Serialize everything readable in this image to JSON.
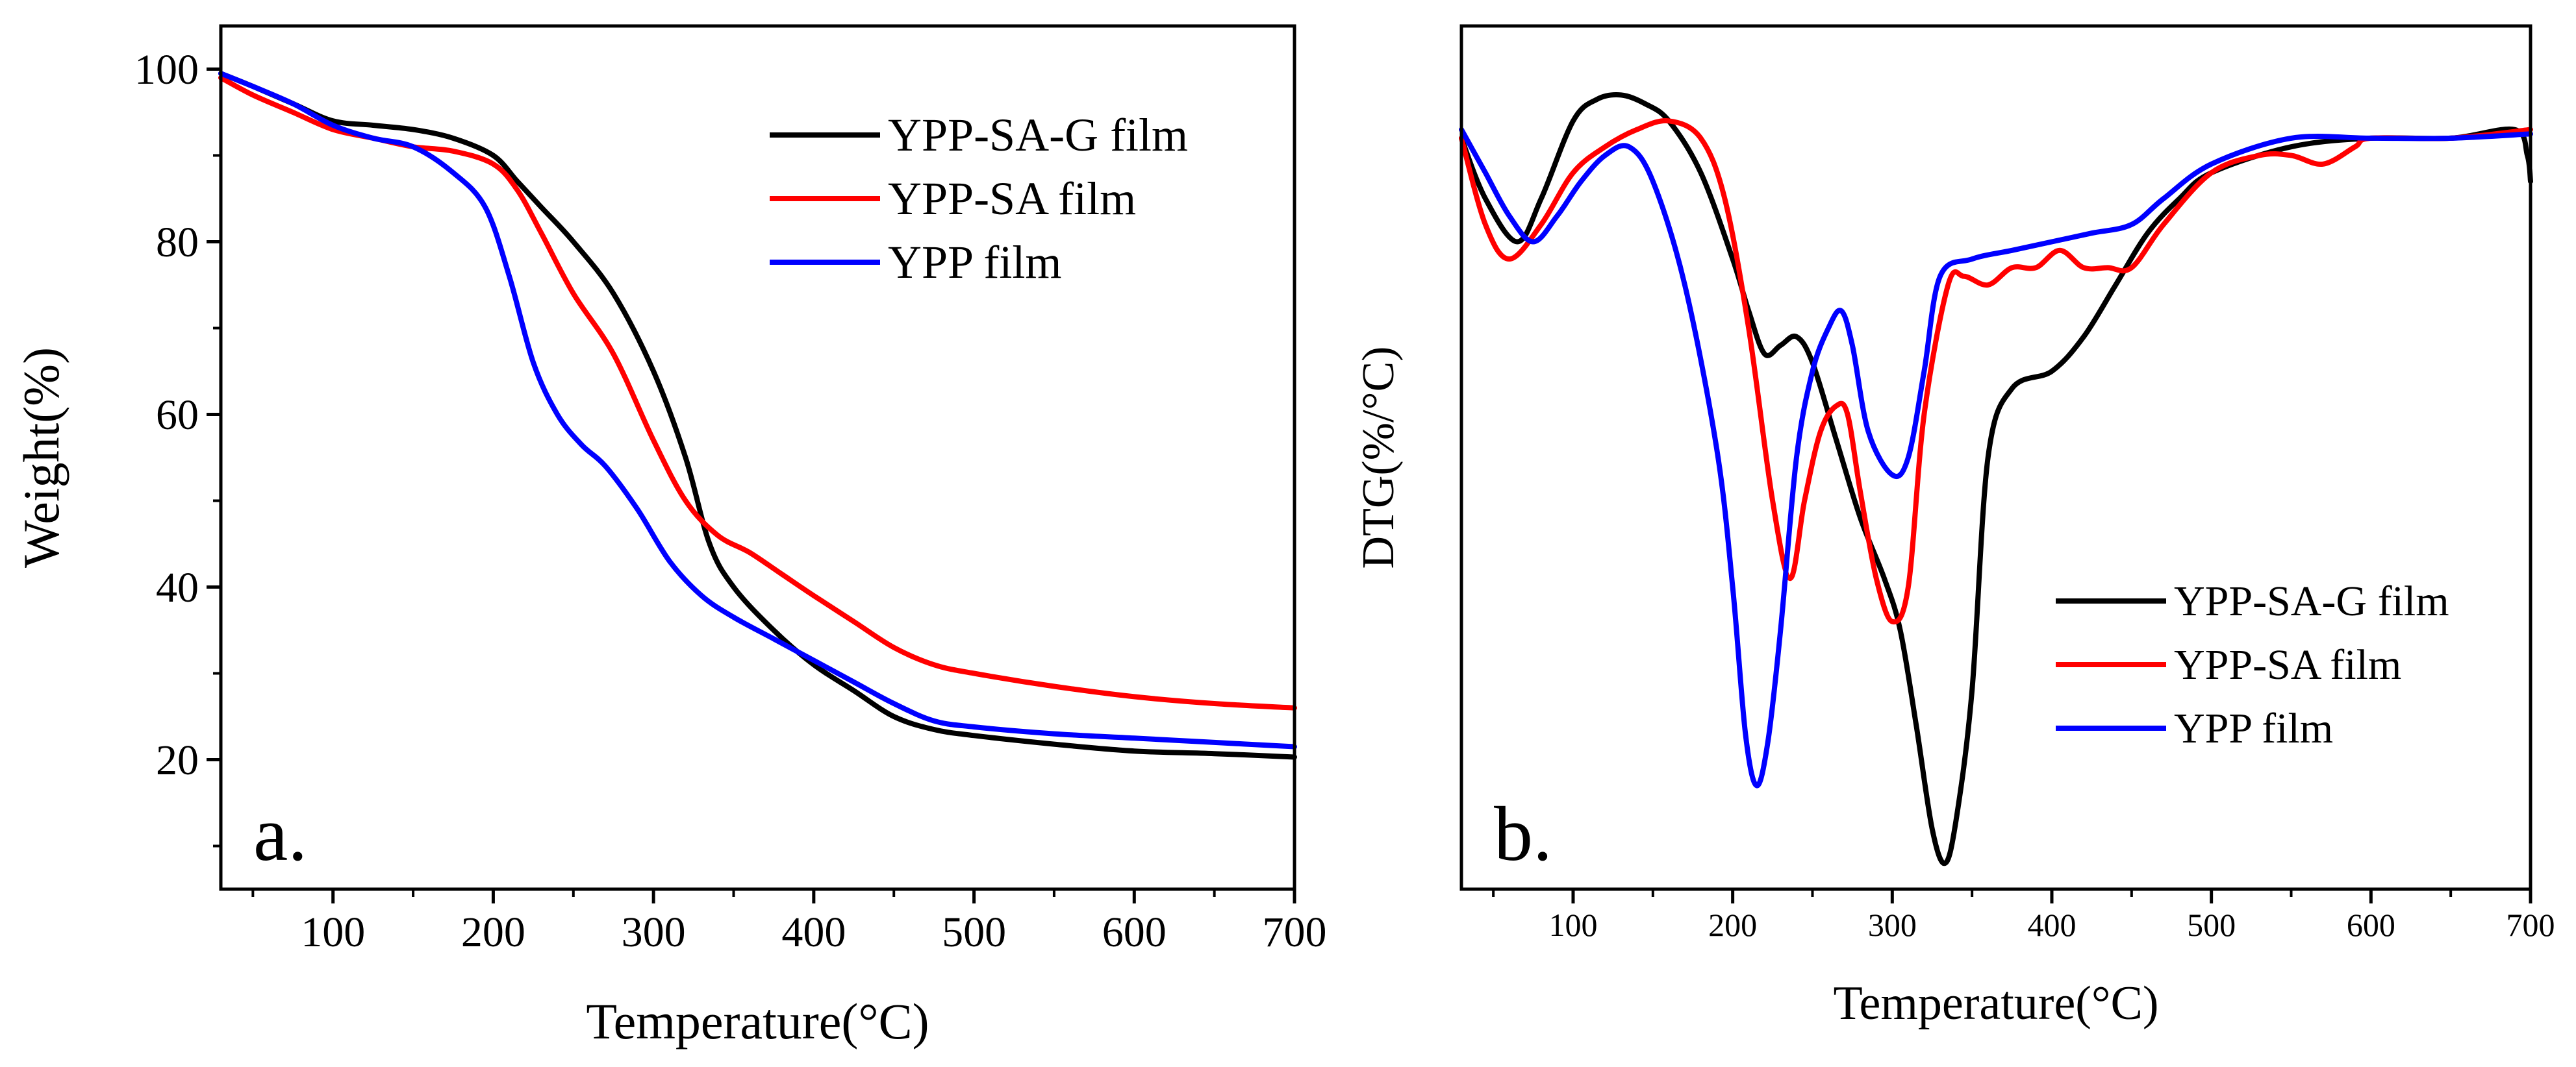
{
  "chart_data": [
    {
      "type": "line",
      "panel_label": "a.",
      "xlabel": "Temperature(°C)",
      "ylabel": "Weight(%)",
      "xlim": [
        30,
        700
      ],
      "ylim": [
        5,
        105
      ],
      "x_ticks": [
        100,
        200,
        300,
        400,
        500,
        600,
        700
      ],
      "x_tick_labels": [
        "100",
        "200",
        "300",
        "400",
        "500",
        "600",
        "700"
      ],
      "y_ticks": [
        20,
        40,
        60,
        80,
        100
      ],
      "y_tick_labels": [
        "20",
        "40",
        "60",
        "80",
        "100"
      ],
      "grid": false,
      "legend_position": "top-right",
      "series": [
        {
          "name": "YPP-SA-G film",
          "color": "#000000",
          "x": [
            30,
            50,
            75,
            100,
            125,
            150,
            175,
            200,
            215,
            230,
            250,
            275,
            300,
            320,
            335,
            350,
            375,
            400,
            425,
            450,
            475,
            500,
            550,
            600,
            650,
            700
          ],
          "y": [
            99.5,
            98,
            96,
            94,
            93.5,
            93,
            92,
            90,
            87,
            84,
            80,
            74,
            65,
            55,
            45,
            40,
            35,
            31,
            28,
            25,
            23.5,
            22.8,
            21.8,
            21,
            20.7,
            20.3
          ]
        },
        {
          "name": "YPP-SA film",
          "color": "#ff0000",
          "x": [
            30,
            50,
            75,
            100,
            125,
            150,
            175,
            200,
            215,
            230,
            250,
            275,
            300,
            320,
            340,
            360,
            380,
            400,
            425,
            450,
            475,
            500,
            550,
            600,
            650,
            700
          ],
          "y": [
            99,
            97,
            95,
            93,
            92,
            91,
            90.5,
            89,
            86,
            81,
            74,
            67,
            57,
            50,
            46,
            44,
            41.5,
            39,
            36,
            33,
            31,
            30,
            28.5,
            27.3,
            26.5,
            26
          ]
        },
        {
          "name": "YPP film",
          "color": "#0000ff",
          "x": [
            30,
            50,
            75,
            100,
            125,
            150,
            175,
            195,
            210,
            225,
            240,
            255,
            270,
            290,
            310,
            330,
            350,
            375,
            400,
            425,
            450,
            475,
            500,
            550,
            600,
            650,
            700
          ],
          "y": [
            99.5,
            98,
            96,
            93.5,
            92,
            91,
            88,
            84,
            76,
            66,
            60,
            56.5,
            54,
            49,
            43,
            39,
            36.5,
            34,
            31.5,
            29,
            26.5,
            24.5,
            23.8,
            23,
            22.5,
            22,
            21.5
          ]
        }
      ]
    },
    {
      "type": "line",
      "panel_label": "b.",
      "xlabel": "Temperature(°C)",
      "ylabel": "DTG(%/°C)",
      "xlim": [
        30,
        700
      ],
      "ylim": [
        0,
        100
      ],
      "x_ticks": [
        100,
        200,
        300,
        400,
        500,
        600,
        700
      ],
      "x_tick_labels": [
        "100",
        "200",
        "300",
        "400",
        "500",
        "600",
        "700"
      ],
      "y_ticks": [],
      "y_tick_labels": [],
      "y_units": "relative (unlabeled axis)",
      "grid": false,
      "legend_position": "bottom-right",
      "series": [
        {
          "name": "YPP-SA-G film",
          "color": "#000000",
          "x": [
            30,
            45,
            65,
            80,
            100,
            115,
            130,
            145,
            160,
            180,
            200,
            210,
            220,
            230,
            240,
            250,
            265,
            280,
            295,
            305,
            315,
            325,
            333,
            340,
            350,
            360,
            375,
            400,
            420,
            440,
            460,
            480,
            500,
            550,
            600,
            650,
            690,
            698,
            700
          ],
          "y": [
            87,
            80,
            75,
            80,
            89,
            91.5,
            92,
            91,
            89,
            83,
            73,
            67,
            62,
            63,
            64,
            61,
            52,
            43,
            36,
            30,
            19,
            7,
            3,
            8,
            23,
            50,
            58,
            60,
            64,
            70,
            76,
            80,
            83,
            86,
            87,
            87,
            88,
            85,
            82
          ]
        },
        {
          "name": "YPP-SA film",
          "color": "#ff0000",
          "x": [
            30,
            45,
            60,
            80,
            100,
            120,
            140,
            160,
            180,
            195,
            210,
            225,
            236,
            245,
            255,
            265,
            272,
            280,
            290,
            300,
            310,
            320,
            335,
            345,
            360,
            375,
            390,
            405,
            420,
            435,
            450,
            470,
            500,
            530,
            550,
            570,
            590,
            600,
            650,
            700
          ],
          "y": [
            87,
            77,
            73,
            77,
            83,
            86,
            88,
            89,
            87,
            80,
            65,
            45,
            36,
            45,
            53,
            56,
            55,
            46,
            36,
            31,
            35,
            55,
            70,
            71,
            70,
            72,
            72,
            74,
            72,
            72,
            72,
            77,
            83,
            85,
            85,
            84,
            86,
            87,
            87,
            88
          ]
        },
        {
          "name": "YPP film",
          "color": "#0000ff",
          "x": [
            30,
            45,
            60,
            75,
            90,
            105,
            120,
            135,
            150,
            170,
            190,
            200,
            208,
            215,
            222,
            230,
            240,
            250,
            260,
            268,
            275,
            285,
            300,
            310,
            320,
            330,
            350,
            375,
            400,
            425,
            450,
            470,
            500,
            550,
            600,
            650,
            700
          ],
          "y": [
            88,
            83,
            78,
            75,
            78,
            82,
            85,
            86,
            82,
            70,
            51,
            35,
            18,
            12,
            17,
            30,
            50,
            60,
            65,
            67,
            63,
            53,
            48,
            50,
            60,
            71,
            73,
            74,
            75,
            76,
            77,
            80,
            84,
            87,
            87,
            87,
            87.5
          ]
        }
      ]
    }
  ]
}
